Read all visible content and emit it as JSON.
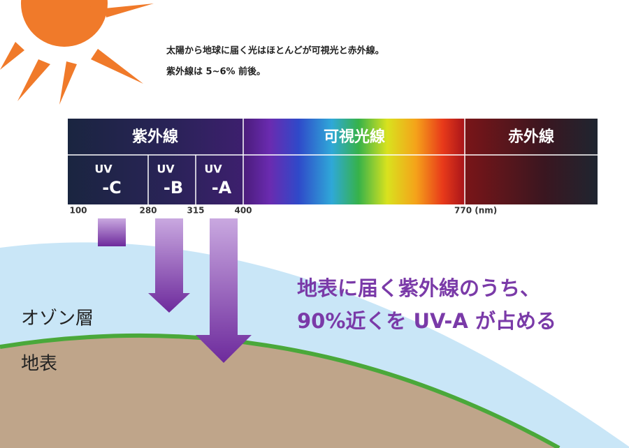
{
  "header": {
    "lines": [
      "太陽から地球に届く光はほとんどが可視光と赤外線。",
      "紫外線は 5~6% 前後。"
    ]
  },
  "spectrum": {
    "bands": [
      "紫外線",
      "可視光線",
      "赤外線"
    ],
    "uv_types": [
      {
        "prefix": "UV",
        "suffix": "-C"
      },
      {
        "prefix": "UV",
        "suffix": "-B"
      },
      {
        "prefix": "UV",
        "suffix": "-A"
      }
    ],
    "scale": [
      "100",
      "280",
      "315",
      "400",
      "770 (nm)"
    ]
  },
  "callout": {
    "lines": [
      "地表に届く紫外線のうち、",
      "90%近くを UV-A が占める"
    ]
  },
  "layers": {
    "ozone": "オゾン層",
    "ground": "地表"
  }
}
